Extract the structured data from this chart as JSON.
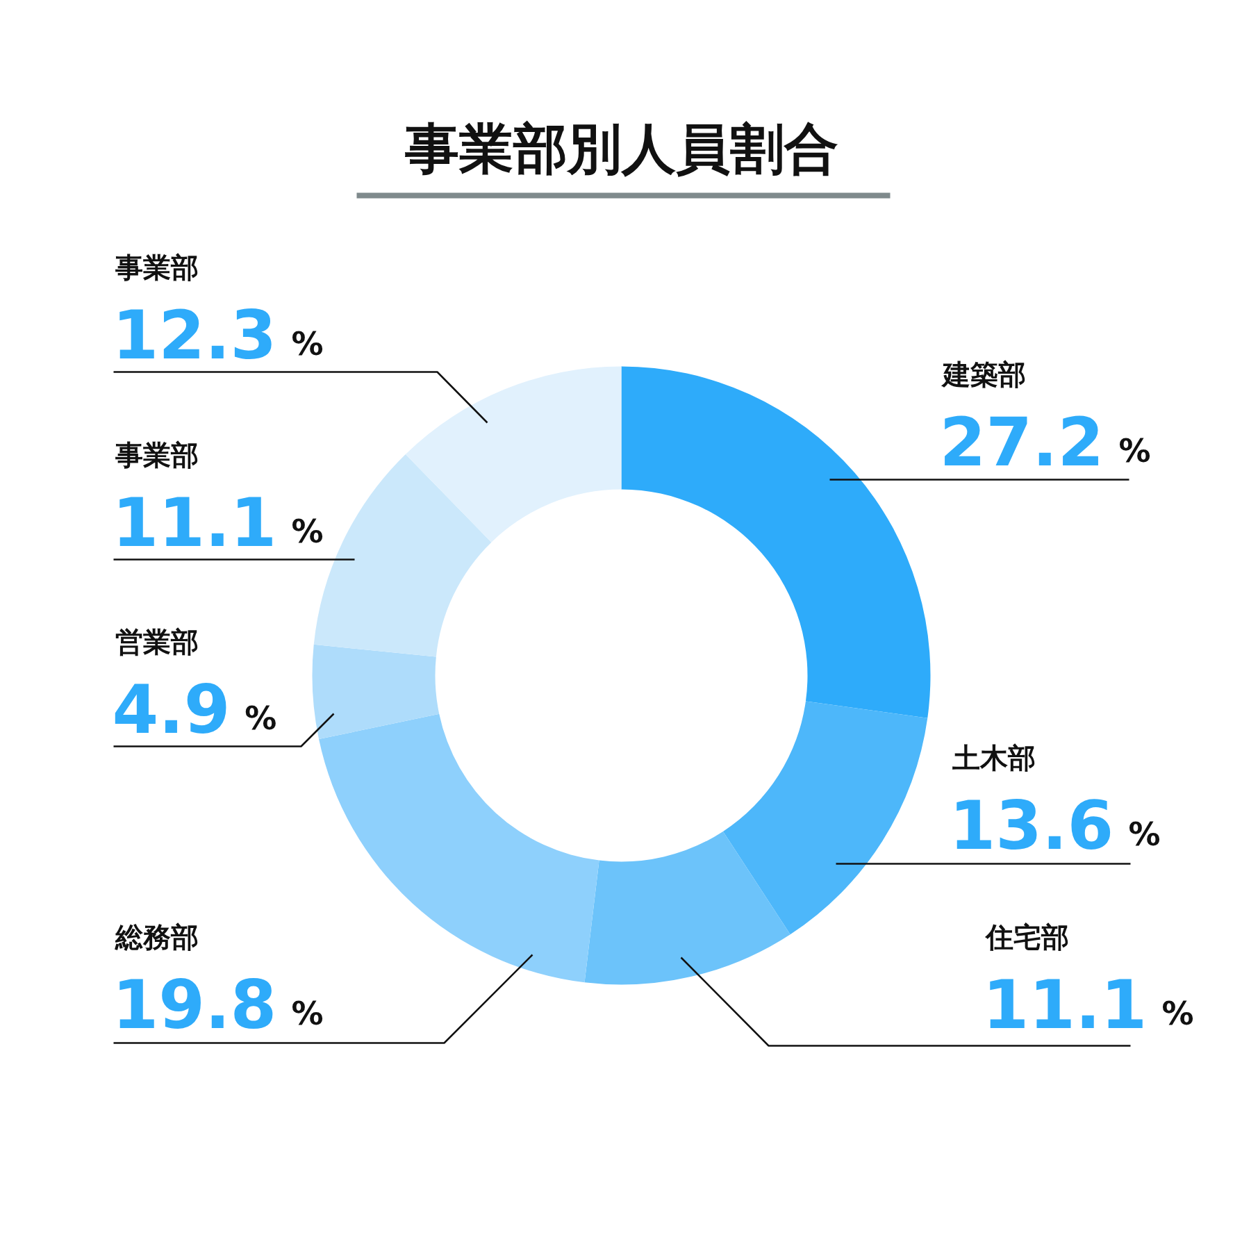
{
  "chart_data": {
    "type": "donut",
    "title": "事業部別人員割合",
    "categories": [
      "建築部",
      "土木部",
      "住宅部",
      "総務部",
      "営業部",
      "事業部",
      "事業部"
    ],
    "values": [
      27.2,
      13.6,
      11.1,
      19.8,
      4.9,
      11.1,
      12.3
    ],
    "value_labels": [
      "27.2%",
      "13.6%",
      "11.1%",
      "19.8%",
      "4.9%",
      "11.1%",
      "12.3%"
    ],
    "colors": [
      "#2eabfa",
      "#4db7fa",
      "#6cc3fa",
      "#8ed0fc",
      "#aedcfb",
      "#cbe8fb",
      "#e1f1fd"
    ]
  }
}
